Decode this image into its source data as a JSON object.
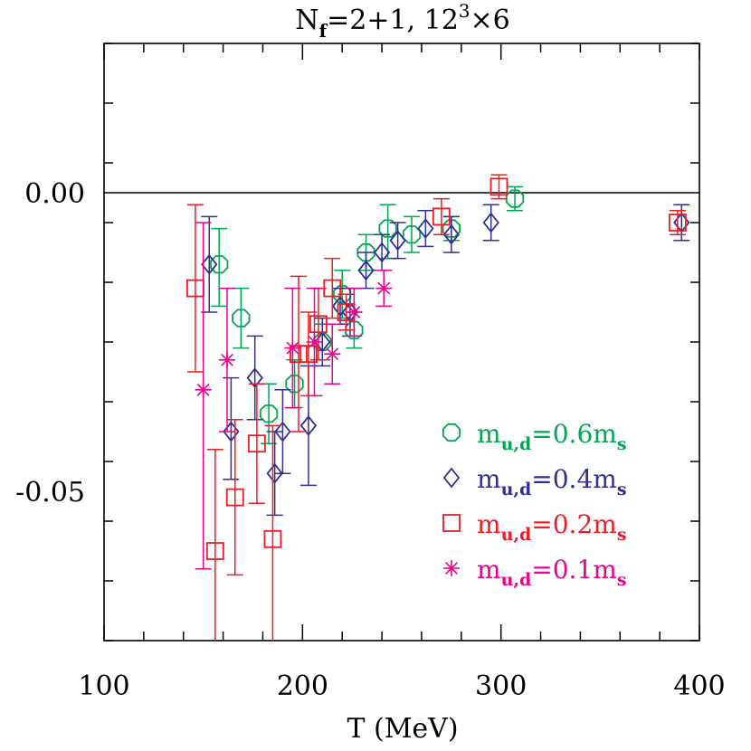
{
  "chart_data": {
    "type": "scatter",
    "title": "N_f=2+1, 12^3×6",
    "title_parts": {
      "main": "N",
      "sub": "f",
      "rest": "=2+1,  12",
      "sup": "3",
      "tail": "×6"
    },
    "xlabel": "T (MeV)",
    "ylabel": "",
    "xlim": [
      100,
      400
    ],
    "ylim": [
      -0.075,
      0.025
    ],
    "x_ticks": [
      100,
      200,
      300,
      400
    ],
    "x_tick_labels": [
      "100",
      "200",
      "300",
      "400"
    ],
    "y_ticks": [
      0.0,
      -0.05
    ],
    "y_tick_labels": [
      "0.00",
      "-0.05"
    ],
    "reference_line_y": 0,
    "grid": false,
    "legend_position": "bottom-right",
    "series": [
      {
        "name": "m_{u,d}=0.6m_s",
        "label_parts": {
          "main": "m",
          "sub": "u,d",
          "mid": "=0.6m",
          "sub2": "s"
        },
        "marker": "octagon",
        "color": "#00a651",
        "points": [
          {
            "x": 158,
            "y": -0.012,
            "lo": -0.019,
            "hi": -0.006
          },
          {
            "x": 169,
            "y": -0.021,
            "lo": -0.026,
            "hi": -0.016
          },
          {
            "x": 183,
            "y": -0.037,
            "lo": -0.042,
            "hi": -0.032
          },
          {
            "x": 196,
            "y": -0.032,
            "lo": -0.036,
            "hi": -0.028
          },
          {
            "x": 210,
            "y": -0.025,
            "lo": -0.028,
            "hi": -0.022
          },
          {
            "x": 220,
            "y": -0.017,
            "lo": -0.021,
            "hi": -0.013
          },
          {
            "x": 226,
            "y": -0.023,
            "lo": -0.026,
            "hi": -0.02
          },
          {
            "x": 232,
            "y": -0.01,
            "lo": -0.013,
            "hi": -0.007
          },
          {
            "x": 243,
            "y": -0.006,
            "lo": -0.011,
            "hi": -0.002
          },
          {
            "x": 255,
            "y": -0.007,
            "lo": -0.01,
            "hi": -0.004
          },
          {
            "x": 275,
            "y": -0.006,
            "lo": -0.008,
            "hi": -0.004
          },
          {
            "x": 307,
            "y": -0.001,
            "lo": -0.003,
            "hi": 0.001
          }
        ]
      },
      {
        "name": "m_{u,d}=0.4m_s",
        "label_parts": {
          "main": "m",
          "sub": "u,d",
          "mid": "=0.4m",
          "sub2": "s"
        },
        "marker": "diamond",
        "color": "#2e3192",
        "points": [
          {
            "x": 153,
            "y": -0.012,
            "lo": -0.02,
            "hi": -0.004
          },
          {
            "x": 164,
            "y": -0.04,
            "lo": -0.048,
            "hi": -0.031
          },
          {
            "x": 176,
            "y": -0.031,
            "lo": -0.038,
            "hi": -0.024
          },
          {
            "x": 186,
            "y": -0.047,
            "lo": -0.054,
            "hi": -0.04
          },
          {
            "x": 190,
            "y": -0.04,
            "lo": -0.047,
            "hi": -0.033
          },
          {
            "x": 203,
            "y": -0.039,
            "lo": -0.049,
            "hi": -0.029
          },
          {
            "x": 210,
            "y": -0.025,
            "lo": -0.029,
            "hi": -0.021
          },
          {
            "x": 219,
            "y": -0.019,
            "lo": -0.022,
            "hi": -0.016
          },
          {
            "x": 224,
            "y": -0.02,
            "lo": -0.024,
            "hi": -0.016
          },
          {
            "x": 232,
            "y": -0.013,
            "lo": -0.016,
            "hi": -0.01
          },
          {
            "x": 240,
            "y": -0.01,
            "lo": -0.013,
            "hi": -0.007
          },
          {
            "x": 248,
            "y": -0.008,
            "lo": -0.011,
            "hi": -0.005
          },
          {
            "x": 262,
            "y": -0.006,
            "lo": -0.009,
            "hi": -0.003
          },
          {
            "x": 275,
            "y": -0.007,
            "lo": -0.01,
            "hi": -0.004
          },
          {
            "x": 295,
            "y": -0.005,
            "lo": -0.008,
            "hi": -0.002
          },
          {
            "x": 391,
            "y": -0.005,
            "lo": -0.008,
            "hi": -0.002
          }
        ]
      },
      {
        "name": "m_{u,d}=0.2m_s",
        "label_parts": {
          "main": "m",
          "sub": "u,d",
          "mid": "=0.2m",
          "sub2": "s"
        },
        "marker": "square",
        "color": "#ed1c24",
        "points": [
          {
            "x": 146,
            "y": -0.016,
            "lo": -0.03,
            "hi": -0.002
          },
          {
            "x": 156,
            "y": -0.06,
            "lo": -0.077,
            "hi": -0.043
          },
          {
            "x": 166,
            "y": -0.051,
            "lo": -0.064,
            "hi": -0.038
          },
          {
            "x": 177,
            "y": -0.042,
            "lo": -0.052,
            "hi": -0.032
          },
          {
            "x": 185,
            "y": -0.058,
            "lo": -0.077,
            "hi": -0.039
          },
          {
            "x": 198,
            "y": -0.027,
            "lo": -0.04,
            "hi": -0.014
          },
          {
            "x": 203,
            "y": -0.027,
            "lo": -0.034,
            "hi": -0.02
          },
          {
            "x": 208,
            "y": -0.022,
            "lo": -0.028,
            "hi": -0.016
          },
          {
            "x": 215,
            "y": -0.016,
            "lo": -0.021,
            "hi": -0.011
          },
          {
            "x": 222,
            "y": -0.02,
            "lo": -0.023,
            "hi": -0.017
          },
          {
            "x": 270,
            "y": -0.004,
            "lo": -0.007,
            "hi": -0.001
          },
          {
            "x": 299,
            "y": 0.001,
            "lo": -0.001,
            "hi": 0.003
          },
          {
            "x": 389,
            "y": -0.005,
            "lo": -0.007,
            "hi": -0.003
          }
        ]
      },
      {
        "name": "m_{u,d}=0.1m_s",
        "label_parts": {
          "main": "m",
          "sub": "u,d",
          "mid": "=0.1m",
          "sub2": "s"
        },
        "marker": "asterisk",
        "color": "#ec008c",
        "points": [
          {
            "x": 150,
            "y": -0.033,
            "lo": -0.063,
            "hi": -0.005
          },
          {
            "x": 162,
            "y": -0.028,
            "lo": -0.04,
            "hi": -0.016
          },
          {
            "x": 195,
            "y": -0.026,
            "lo": -0.036,
            "hi": -0.016
          },
          {
            "x": 206,
            "y": -0.025,
            "lo": -0.034,
            "hi": -0.016
          },
          {
            "x": 215,
            "y": -0.027,
            "lo": -0.032,
            "hi": -0.022
          },
          {
            "x": 226,
            "y": -0.02,
            "lo": -0.024,
            "hi": -0.016
          },
          {
            "x": 241,
            "y": -0.016,
            "lo": -0.019,
            "hi": -0.013
          }
        ]
      }
    ]
  }
}
